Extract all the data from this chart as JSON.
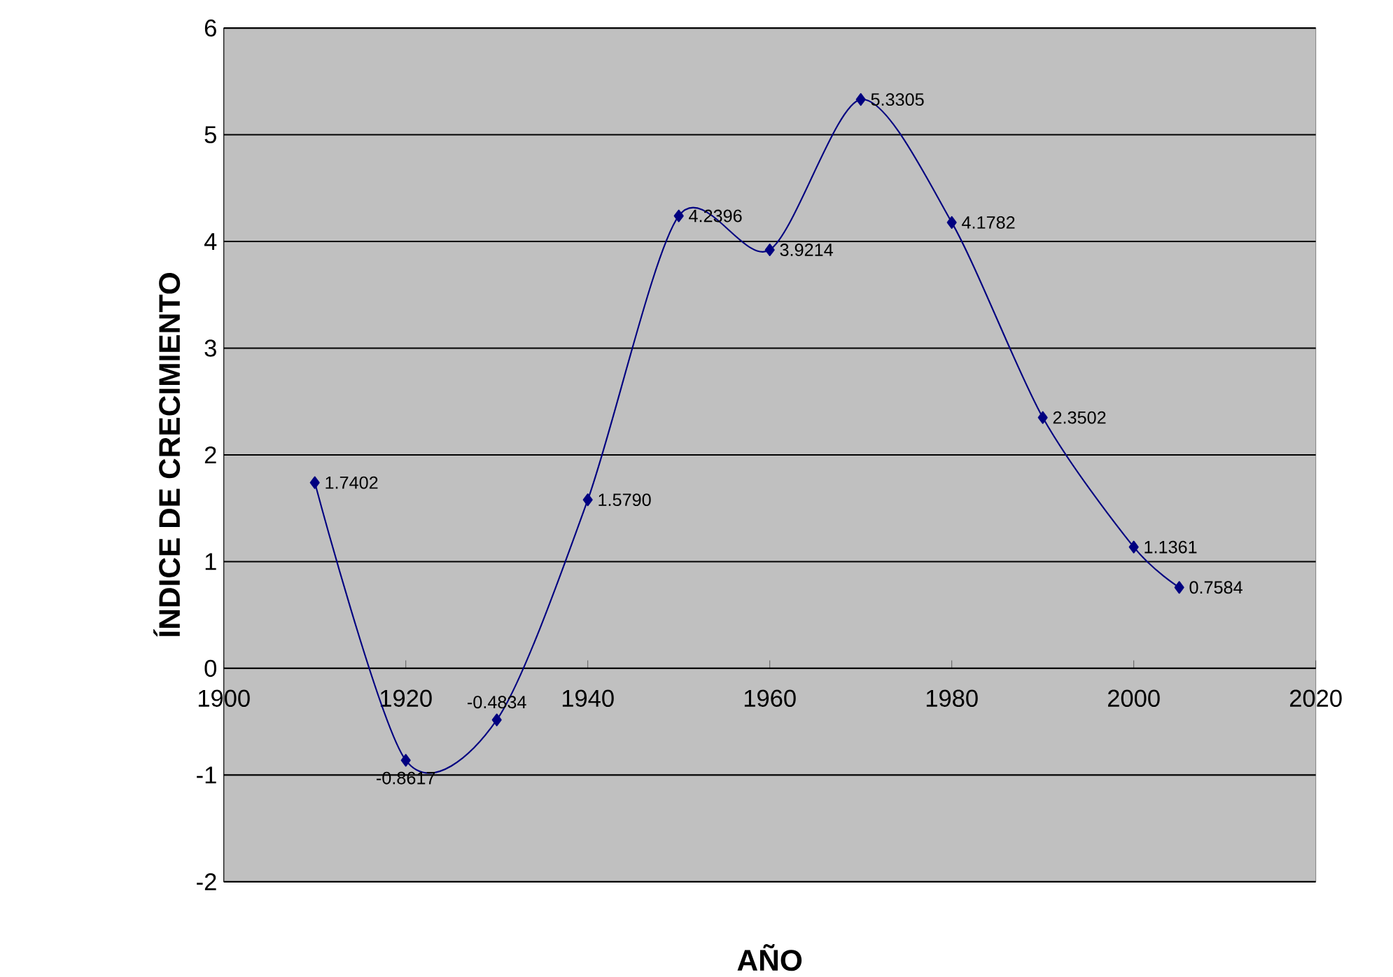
{
  "chart_data": {
    "type": "line",
    "xlabel": "AÑO",
    "ylabel": "ÍNDICE DE CRECIMIENTO",
    "x": [
      1910,
      1920,
      1930,
      1940,
      1950,
      1960,
      1970,
      1980,
      1990,
      2000,
      2005
    ],
    "values": [
      1.7402,
      -0.8617,
      -0.4834,
      1.579,
      4.2396,
      3.9214,
      5.3305,
      4.1782,
      2.3502,
      1.1361,
      0.7584
    ],
    "value_labels": [
      "1.7402",
      "-0.8617",
      "-0.4834",
      "1.5790",
      "4.2396",
      "3.9214",
      "5.3305",
      "4.1782",
      "2.3502",
      "1.1361",
      "0.7584"
    ],
    "color": "#000080",
    "xlim": [
      1900,
      2020
    ],
    "ylim": [
      -2,
      6
    ],
    "xticks": [
      1900,
      1920,
      1940,
      1960,
      1980,
      2000,
      2020
    ],
    "yticks": [
      -2,
      -1,
      0,
      1,
      2,
      3,
      4,
      5,
      6
    ],
    "grid": "y",
    "marker": "diamond",
    "line_style": "solid"
  }
}
